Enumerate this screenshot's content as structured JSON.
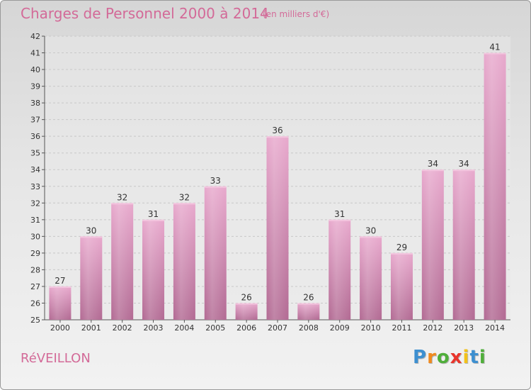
{
  "chart_data": {
    "type": "bar",
    "title": "Charges de Personnel 2000 à 2014",
    "subtitle": "(en milliers d'€)",
    "categories": [
      "2000",
      "2001",
      "2002",
      "2003",
      "2004",
      "2005",
      "2006",
      "2007",
      "2008",
      "2009",
      "2010",
      "2011",
      "2012",
      "2013",
      "2014"
    ],
    "values": [
      27,
      30,
      32,
      31,
      32,
      33,
      26,
      36,
      26,
      31,
      30,
      29,
      34,
      34,
      41
    ],
    "ylim": [
      25,
      42
    ],
    "yticks": [
      25,
      26,
      27,
      28,
      29,
      30,
      31,
      32,
      33,
      34,
      35,
      36,
      37,
      38,
      39,
      40,
      41,
      42
    ],
    "grid": true,
    "bar_color": "#d98fb8"
  },
  "commune": "RéVEILLON",
  "logo": {
    "letters": [
      "P",
      "r",
      "o",
      "x",
      "i",
      "t",
      "i"
    ],
    "colors": [
      "#3d8fd0",
      "#f08a1e",
      "#4fae3a",
      "#e8352c",
      "#f2c21a",
      "#3d8fd0",
      "#4fae3a"
    ]
  }
}
